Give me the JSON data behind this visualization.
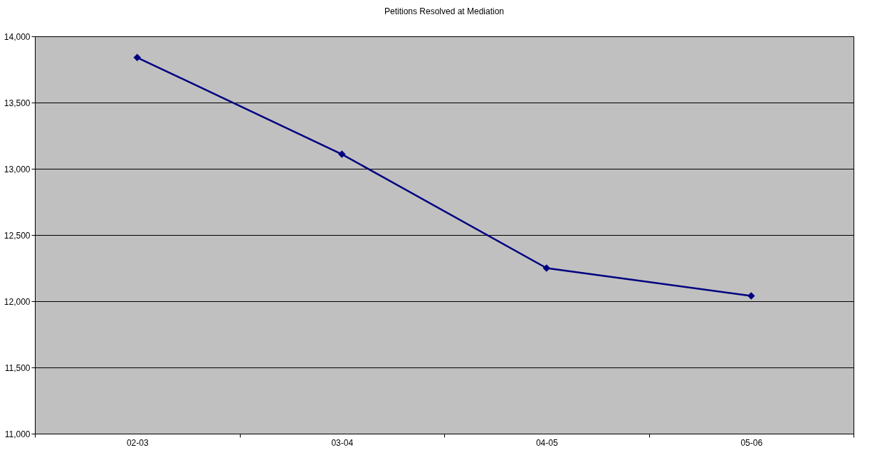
{
  "chart_data": {
    "type": "line",
    "title": "Petitions Resolved at Mediation",
    "categories": [
      "02-03",
      "03-04",
      "04-05",
      "05-06"
    ],
    "series": [
      {
        "color": "#000080",
        "values": [
          13840,
          13110,
          12250,
          12040
        ]
      }
    ],
    "ylim": [
      11000,
      14000
    ],
    "yticks": [
      {
        "value": 11000,
        "label": "11,000"
      },
      {
        "value": 11500,
        "label": "11,500"
      },
      {
        "value": 12000,
        "label": "12,000"
      },
      {
        "value": 12500,
        "label": "12,500"
      },
      {
        "value": 13000,
        "label": "13,000"
      },
      {
        "value": 13500,
        "label": "13,500"
      },
      {
        "value": 14000,
        "label": "14,000"
      }
    ],
    "grid": "y",
    "legend": false,
    "marker": "diamond",
    "line_style": "solid"
  }
}
